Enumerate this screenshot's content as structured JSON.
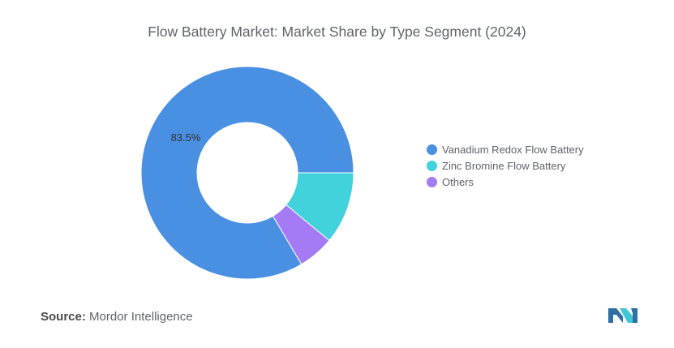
{
  "chart_data": {
    "type": "pie",
    "title": "Flow Battery Market: Market Share by Type Segment (2024)",
    "categories": [
      "Vanadium Redox Flow Battery",
      "Zinc Bromine Flow Battery",
      "Others"
    ],
    "values": [
      83.5,
      11.0,
      5.5
    ],
    "colors": [
      "#4a90e2",
      "#41d2dc",
      "#a57af5"
    ],
    "data_labels": [
      "83.5%",
      "",
      ""
    ],
    "donut": true,
    "legend_position": "right"
  },
  "source": {
    "label": "Source:",
    "text": "Mordor Intelligence"
  },
  "logo": {
    "icon": "mordor-intelligence-logo-icon",
    "colors": [
      "#2f6fa3",
      "#41c7d3"
    ]
  }
}
